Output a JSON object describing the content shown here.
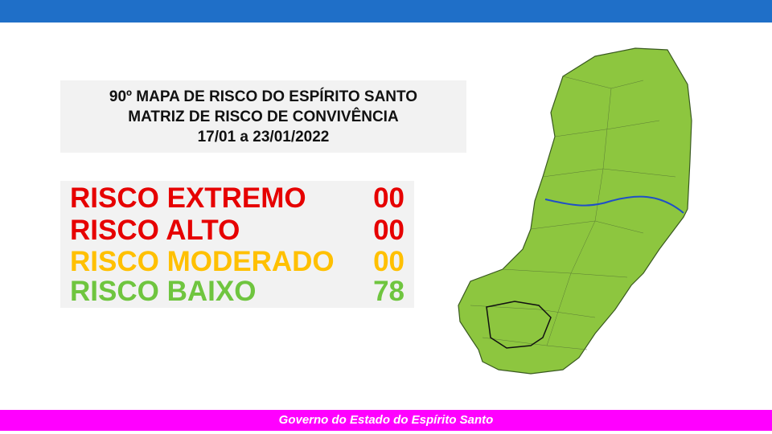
{
  "header": {
    "lines": [
      "90º MAPA DE RISCO DO ESPÍRITO SANTO",
      "MATRIZ DE RISCO DE CONVIVÊNCIA",
      "17/01 a 23/01/2022"
    ]
  },
  "risks": [
    {
      "label": "RISCO EXTREMO",
      "value": "00",
      "color": "#e60000"
    },
    {
      "label": "RISCO ALTO",
      "value": "00",
      "color": "#e60000"
    },
    {
      "label": "RISCO MODERADO",
      "value": "00",
      "color": "#ffc000"
    },
    {
      "label": "RISCO BAIXO",
      "value": "78",
      "color": "#6fc53f"
    }
  ],
  "footer": "Governo do Estado do Espírito Santo"
}
